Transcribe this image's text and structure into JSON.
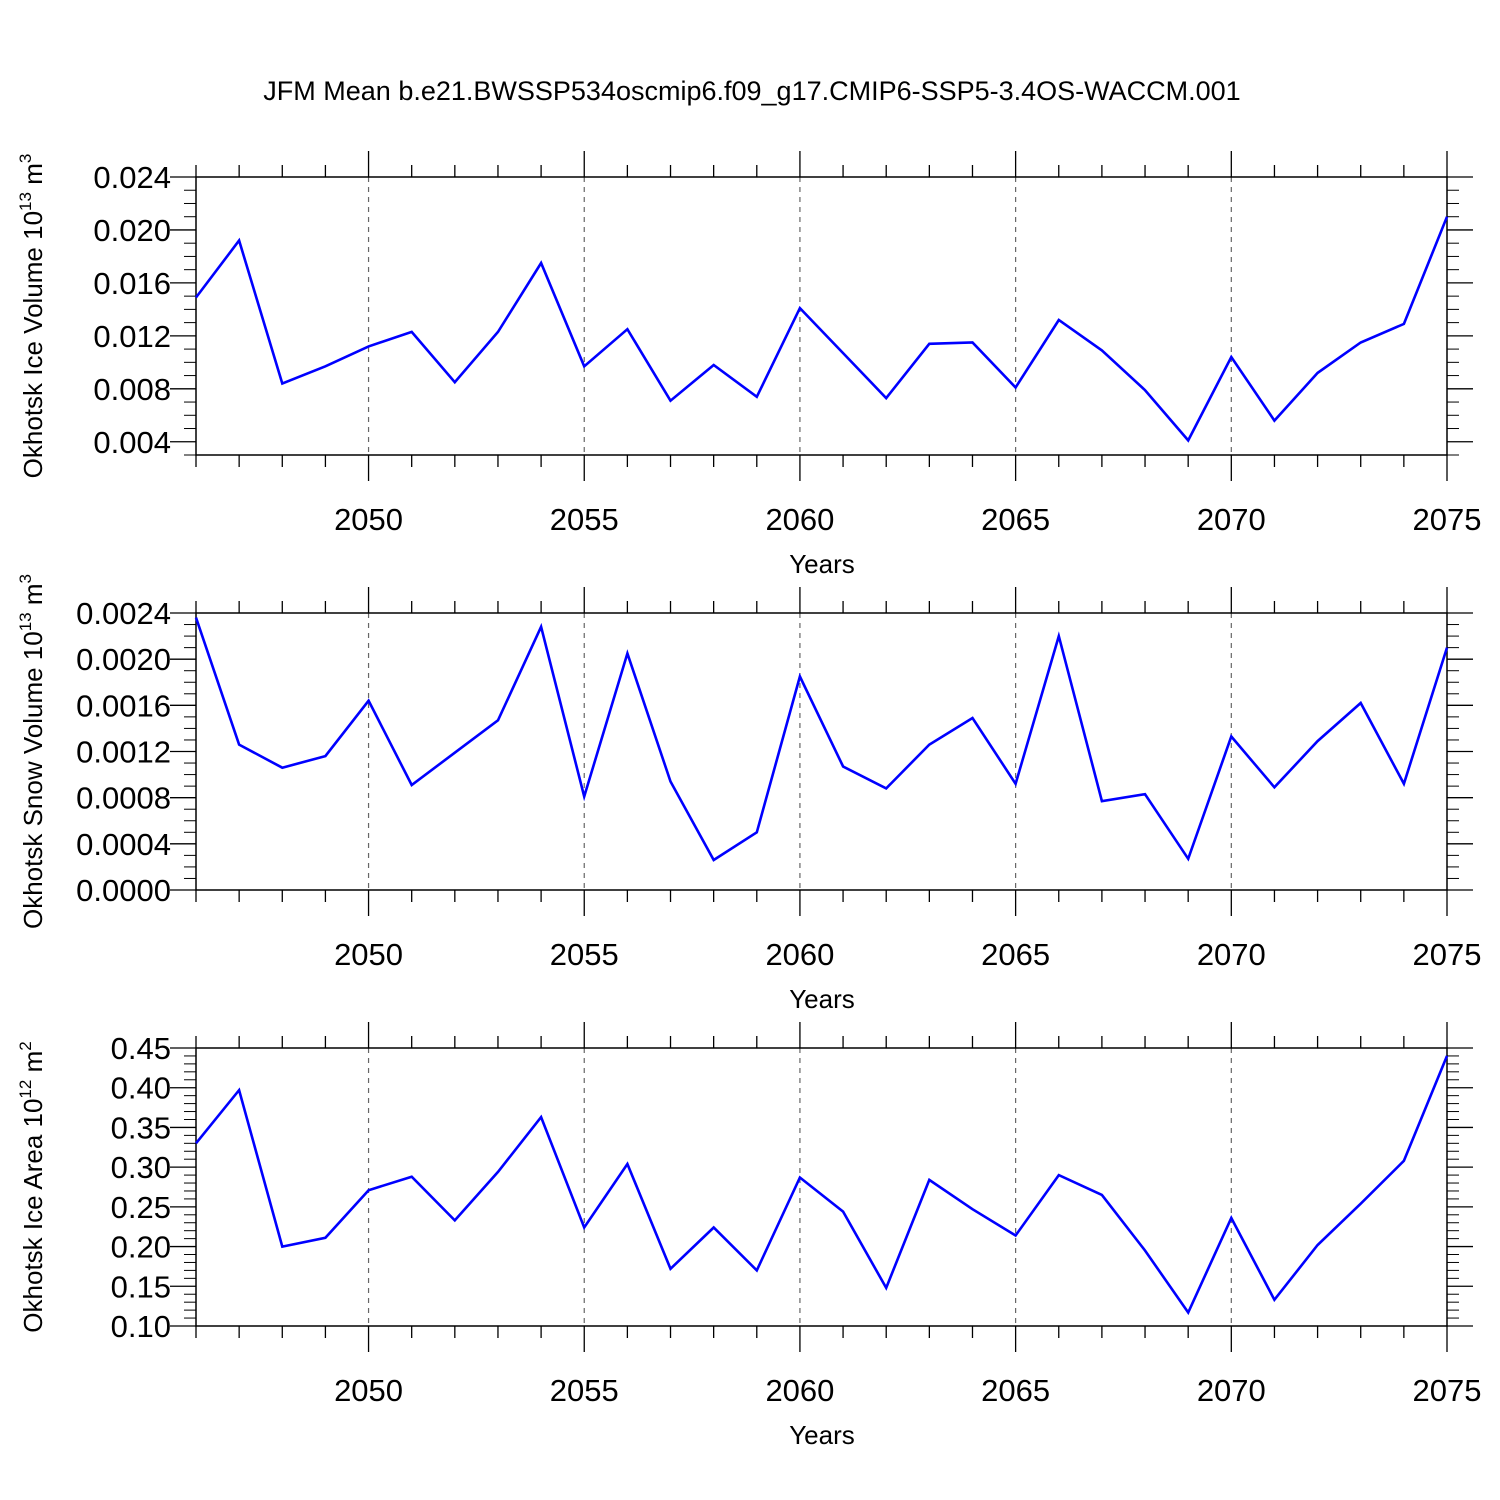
{
  "title": "JFM Mean b.e21.BWSSP534oscmip6.f09_g17.CMIP6-SSP5-3.4OS-WACCM.001",
  "chart_data": [
    {
      "type": "line",
      "ylabel": {
        "prefix": "Okhotsk Ice Volume 10",
        "exp": "13",
        "unit": " m",
        "unit_exp": "3"
      },
      "xlabel": "Years",
      "xlim": [
        2046,
        2075
      ],
      "ylim": [
        0.003,
        0.024
      ],
      "y_major_ticks": [
        0.004,
        0.008,
        0.012,
        0.016,
        0.02,
        0.024
      ],
      "y_tick_labels": [
        "0.004",
        "0.008",
        "0.012",
        "0.016",
        "0.020",
        "0.024"
      ],
      "y_minor_step": 0.001,
      "x_major_ticks": [
        2050,
        2055,
        2060,
        2065,
        2070,
        2075
      ],
      "x_tick_labels": [
        "2050",
        "2055",
        "2060",
        "2065",
        "2070",
        "2075"
      ],
      "grid": "vertical-dashed",
      "color": "#0000ff",
      "x": [
        2046,
        2047,
        2048,
        2049,
        2050,
        2051,
        2052,
        2053,
        2054,
        2055,
        2056,
        2057,
        2058,
        2059,
        2060,
        2061,
        2062,
        2063,
        2064,
        2065,
        2066,
        2067,
        2068,
        2069,
        2070,
        2071,
        2072,
        2073,
        2074,
        2075
      ],
      "values": [
        0.0149,
        0.0192,
        0.0084,
        0.0097,
        0.0112,
        0.0123,
        0.0085,
        0.0123,
        0.0175,
        0.0097,
        0.0125,
        0.0071,
        0.0098,
        0.0074,
        0.0141,
        0.0107,
        0.0073,
        0.0114,
        0.0115,
        0.0081,
        0.0132,
        0.0109,
        0.0079,
        0.0041,
        0.0104,
        0.0056,
        0.0092,
        0.0115,
        0.0129,
        0.021
      ]
    },
    {
      "type": "line",
      "ylabel": {
        "prefix": "Okhotsk Snow Volume 10",
        "exp": "13",
        "unit": " m",
        "unit_exp": "3"
      },
      "xlabel": "Years",
      "xlim": [
        2046,
        2075
      ],
      "ylim": [
        0.0,
        0.0024
      ],
      "y_major_ticks": [
        0.0,
        0.0004,
        0.0008,
        0.0012,
        0.0016,
        0.002,
        0.0024
      ],
      "y_tick_labels": [
        "0.0000",
        "0.0004",
        "0.0008",
        "0.0012",
        "0.0016",
        "0.0020",
        "0.0024"
      ],
      "y_minor_step": 0.0001,
      "x_major_ticks": [
        2050,
        2055,
        2060,
        2065,
        2070,
        2075
      ],
      "x_tick_labels": [
        "2050",
        "2055",
        "2060",
        "2065",
        "2070",
        "2075"
      ],
      "grid": "vertical-dashed",
      "color": "#0000ff",
      "x": [
        2046,
        2047,
        2048,
        2049,
        2050,
        2051,
        2052,
        2053,
        2054,
        2055,
        2056,
        2057,
        2058,
        2059,
        2060,
        2061,
        2062,
        2063,
        2064,
        2065,
        2066,
        2067,
        2068,
        2069,
        2070,
        2071,
        2072,
        2073,
        2074,
        2075
      ],
      "values": [
        0.00236,
        0.00126,
        0.00106,
        0.00116,
        0.00164,
        0.00091,
        0.00119,
        0.00147,
        0.00228,
        0.00081,
        0.00205,
        0.00094,
        0.00026,
        0.0005,
        0.00185,
        0.00107,
        0.00088,
        0.00126,
        0.00149,
        0.00092,
        0.0022,
        0.00077,
        0.00083,
        0.00027,
        0.00133,
        0.00089,
        0.00129,
        0.00162,
        0.00092,
        0.0021
      ]
    },
    {
      "type": "line",
      "ylabel": {
        "prefix": "Okhotsk Ice Area 10",
        "exp": "12",
        "unit": " m",
        "unit_exp": "2"
      },
      "xlabel": "Years",
      "xlim": [
        2046,
        2075
      ],
      "ylim": [
        0.1,
        0.45
      ],
      "y_major_ticks": [
        0.1,
        0.15,
        0.2,
        0.25,
        0.3,
        0.35,
        0.4,
        0.45
      ],
      "y_tick_labels": [
        "0.10",
        "0.15",
        "0.20",
        "0.25",
        "0.30",
        "0.35",
        "0.40",
        "0.45"
      ],
      "y_minor_step": 0.01,
      "x_major_ticks": [
        2050,
        2055,
        2060,
        2065,
        2070,
        2075
      ],
      "x_tick_labels": [
        "2050",
        "2055",
        "2060",
        "2065",
        "2070",
        "2075"
      ],
      "grid": "vertical-dashed",
      "color": "#0000ff",
      "x": [
        2046,
        2047,
        2048,
        2049,
        2050,
        2051,
        2052,
        2053,
        2054,
        2055,
        2056,
        2057,
        2058,
        2059,
        2060,
        2061,
        2062,
        2063,
        2064,
        2065,
        2066,
        2067,
        2068,
        2069,
        2070,
        2071,
        2072,
        2073,
        2074,
        2075
      ],
      "values": [
        0.33,
        0.397,
        0.2,
        0.211,
        0.271,
        0.288,
        0.233,
        0.294,
        0.363,
        0.224,
        0.304,
        0.172,
        0.224,
        0.17,
        0.287,
        0.244,
        0.148,
        0.284,
        0.247,
        0.214,
        0.29,
        0.265,
        0.195,
        0.117,
        0.236,
        0.133,
        0.202,
        0.254,
        0.308,
        0.44
      ]
    }
  ]
}
